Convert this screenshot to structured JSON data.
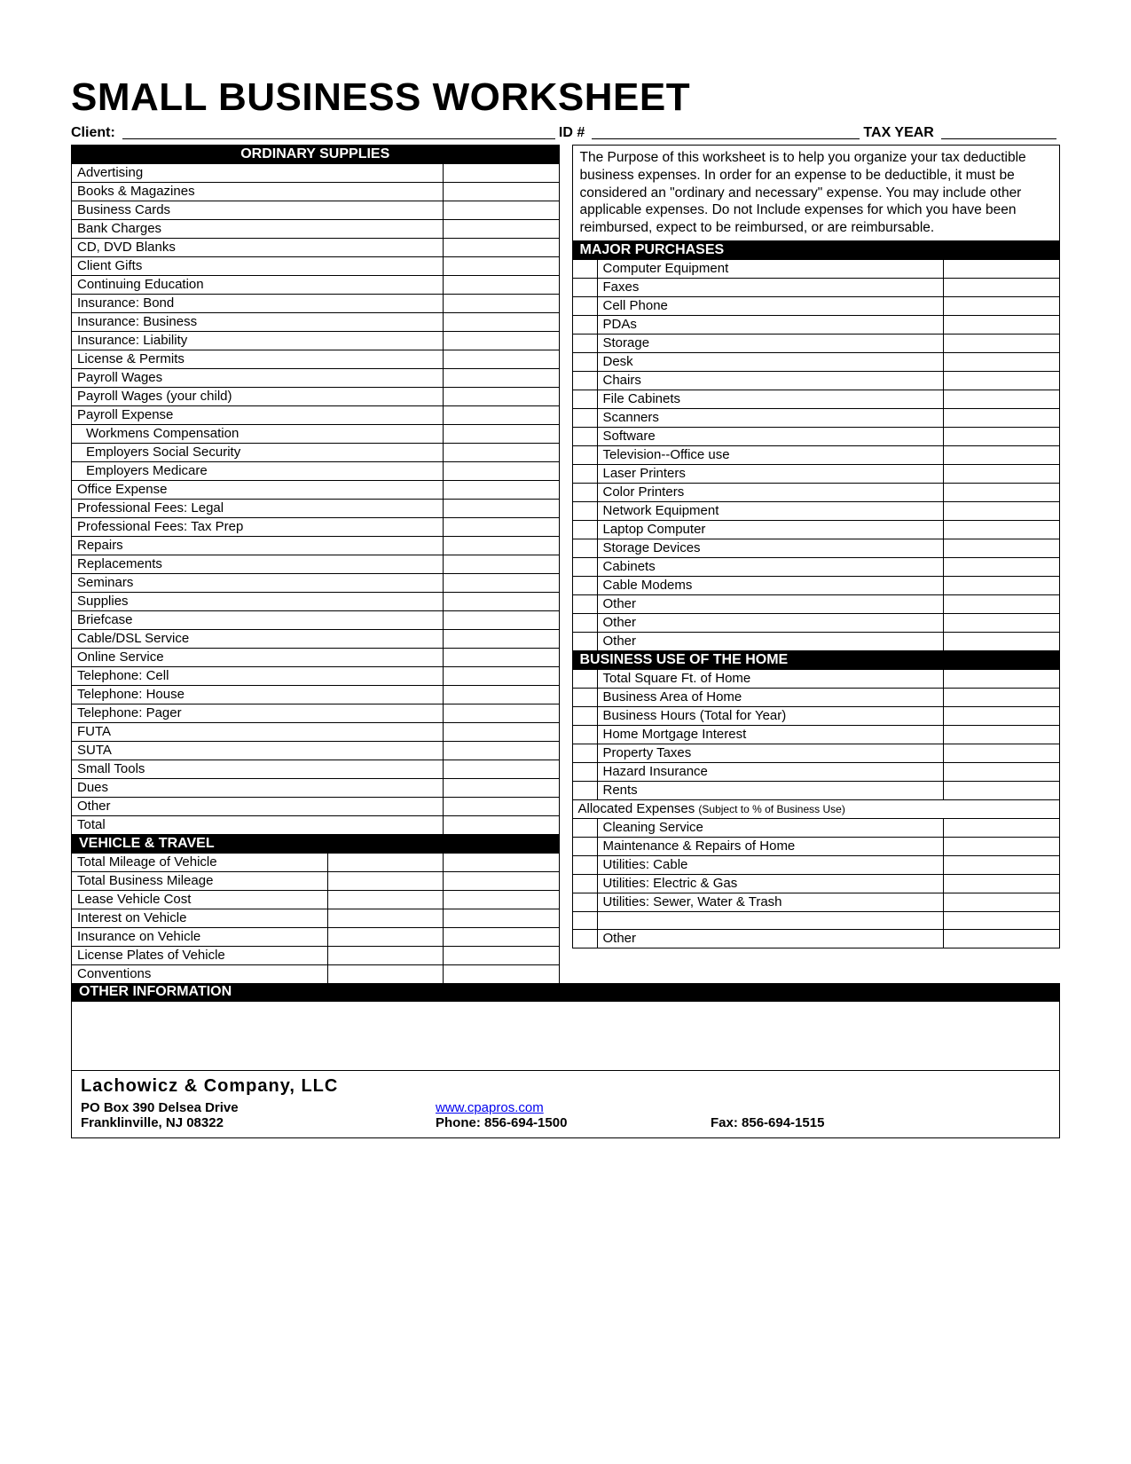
{
  "title": "SMALL BUSINESS WORKSHEET",
  "header": {
    "client_label": "Client:",
    "id_label": "ID #",
    "tax_year_label": "TAX YEAR"
  },
  "purpose_text": "The Purpose of this worksheet is to help you organize your tax deductible business expenses. In order for an expense to be deductible, it must be considered an \"ordinary and necessary\" expense. You may include other applicable expenses. Do not Include expenses for which you have been reimbursed, expect to be reimbursed, or are reimbursable.",
  "sections": {
    "ordinary_supplies": {
      "title": "ORDINARY SUPPLIES",
      "items": [
        "Advertising",
        "Books & Magazines",
        "Business Cards",
        "Bank Charges",
        "CD, DVD Blanks",
        "Client Gifts",
        "Continuing Education",
        "Insurance: Bond",
        "Insurance: Business",
        "Insurance: Liability",
        "License & Permits",
        "Payroll Wages",
        "Payroll Wages (your child)",
        "Payroll Expense",
        "Workmens Compensation",
        "Employers Social Security",
        "Employers Medicare",
        "Office Expense",
        "Professional Fees: Legal",
        "Professional Fees: Tax Prep",
        "Repairs",
        "Replacements",
        "Seminars",
        "Supplies",
        "Briefcase",
        "Cable/DSL Service",
        "Online Service",
        "Telephone: Cell",
        "Telephone: House",
        "Telephone: Pager",
        "FUTA",
        "SUTA",
        "Small Tools",
        "Dues",
        "Other",
        "Total"
      ],
      "indent_indices": [
        14,
        15,
        16
      ]
    },
    "vehicle_travel": {
      "title": "VEHICLE & TRAVEL",
      "items": [
        "Total Mileage of Vehicle",
        "Total Business Mileage",
        "Lease Vehicle Cost",
        "Interest on Vehicle",
        "Insurance on Vehicle",
        "License Plates of Vehicle",
        "Conventions"
      ]
    },
    "major_purchases": {
      "title": "MAJOR PURCHASES",
      "items": [
        "Computer Equipment",
        "Faxes",
        "Cell Phone",
        "PDAs",
        "Storage",
        "Desk",
        "Chairs",
        "File Cabinets",
        "Scanners",
        "Software",
        "Television--Office use",
        "Laser Printers",
        "Color Printers",
        "Network Equipment",
        "Laptop Computer",
        "Storage Devices",
        "Cabinets",
        "Cable Modems",
        "Other",
        "Other",
        "Other"
      ]
    },
    "business_home": {
      "title": "BUSINESS USE OF THE HOME",
      "items": [
        "Total Square Ft. of Home",
        "Business Area of Home",
        "Business Hours (Total for Year)",
        "Home Mortgage Interest",
        "Property Taxes",
        "Hazard Insurance",
        "Rents"
      ],
      "allocated_label": "Allocated Expenses",
      "allocated_note": "(Subject to % of Business Use)",
      "items2": [
        "Cleaning Service",
        "Maintenance & Repairs of Home",
        "Utilities: Cable",
        "Utilities: Electric & Gas",
        "Utilities: Sewer, Water & Trash",
        "",
        "Other"
      ]
    },
    "other_info": {
      "title": "OTHER INFORMATION"
    }
  },
  "footer": {
    "company": "Lachowicz & Company, LLC",
    "address1": "PO Box 390 Delsea Drive",
    "address2": "Franklinville, NJ 08322",
    "website": "www.cpapros.com",
    "phone": "Phone: 856-694-1500",
    "fax": "Fax: 856-694-1515"
  }
}
